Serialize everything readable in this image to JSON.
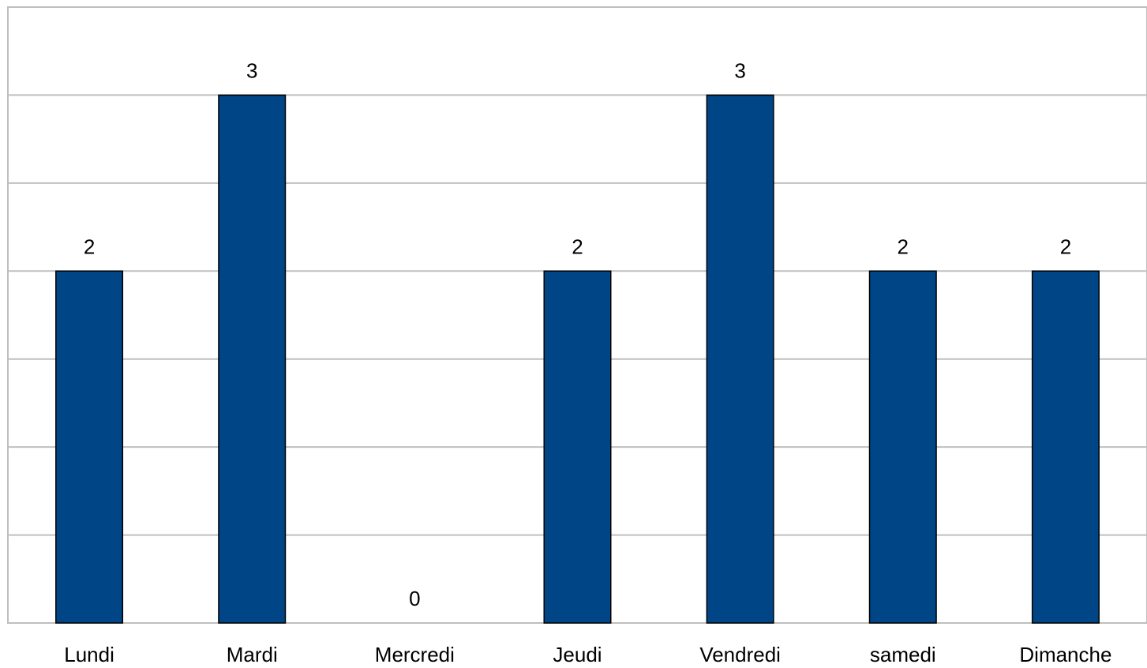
{
  "chart_data": {
    "type": "bar",
    "title": "",
    "xlabel": "",
    "ylabel": "",
    "categories": [
      "Lundi",
      "Mardi",
      "Mercredi",
      "Jeudi",
      "Vendredi",
      "samedi",
      "Dimanche"
    ],
    "values": [
      2,
      3,
      0,
      2,
      3,
      2,
      2
    ],
    "ylim": [
      0,
      3.5
    ],
    "grid": true,
    "gridline_step": 0.5,
    "y_tick_labels_shown": false,
    "data_labels_shown": true,
    "legend": "none",
    "bar_color": "#004586",
    "bar_outline_color": "#000000",
    "grid_color": "#bfbfbf"
  }
}
